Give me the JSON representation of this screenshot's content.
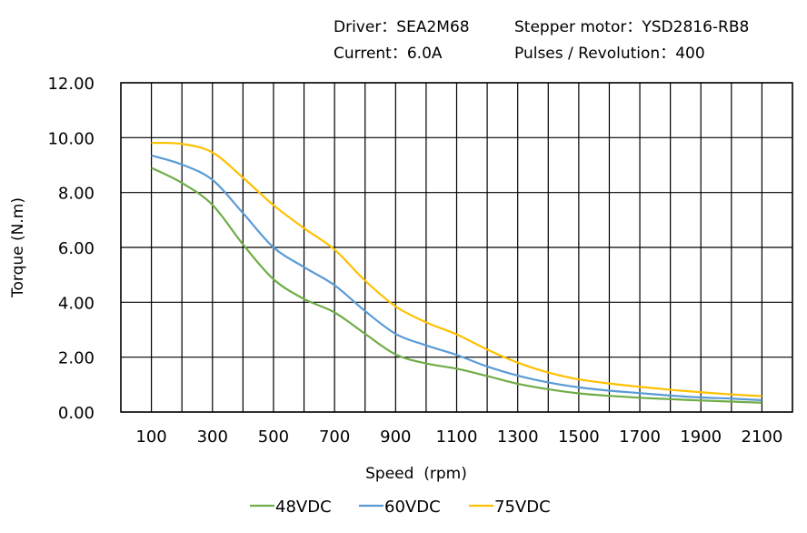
{
  "header": {
    "driver": "Driver：SEA2M68",
    "motor": "Stepper motor：YSD2816-RB8",
    "current": "Current：6.0A",
    "pulses": "Pulses / Revolution：400"
  },
  "chart_data": {
    "type": "line",
    "title": "",
    "xlabel": "Speed  (rpm)",
    "ylabel": "Torque (N.m)",
    "xlim": [
      0,
      2200
    ],
    "ylim": [
      0,
      12
    ],
    "grid": true,
    "legend_position": "bottom",
    "x_ticks": [
      "100",
      "300",
      "500",
      "700",
      "900",
      "1100",
      "1300",
      "1500",
      "1700",
      "1900",
      "2100"
    ],
    "y_ticks": [
      "0.00",
      "2.00",
      "4.00",
      "6.00",
      "8.00",
      "10.00",
      "12.00"
    ],
    "x": [
      100,
      200,
      300,
      400,
      500,
      600,
      700,
      800,
      900,
      1000,
      1100,
      1200,
      1300,
      1400,
      1500,
      1600,
      1700,
      1800,
      1900,
      2000,
      2100
    ],
    "series": [
      {
        "name": "48VDC",
        "color": "#70AD47",
        "values": [
          8.9,
          8.35,
          7.55,
          6.11,
          4.84,
          4.12,
          3.63,
          2.85,
          2.1,
          1.77,
          1.58,
          1.31,
          1.03,
          0.83,
          0.68,
          0.59,
          0.52,
          0.47,
          0.42,
          0.38,
          0.34
        ]
      },
      {
        "name": "60VDC",
        "color": "#5B9BD5",
        "values": [
          9.35,
          9.02,
          8.46,
          7.25,
          6.0,
          5.28,
          4.62,
          3.68,
          2.85,
          2.43,
          2.08,
          1.66,
          1.33,
          1.08,
          0.9,
          0.78,
          0.69,
          0.6,
          0.53,
          0.49,
          0.43
        ]
      },
      {
        "name": "75VDC",
        "color": "#FFC000",
        "values": [
          9.81,
          9.77,
          9.46,
          8.54,
          7.54,
          6.7,
          5.92,
          4.79,
          3.85,
          3.27,
          2.83,
          2.28,
          1.8,
          1.44,
          1.19,
          1.04,
          0.92,
          0.81,
          0.72,
          0.64,
          0.58
        ]
      }
    ]
  }
}
